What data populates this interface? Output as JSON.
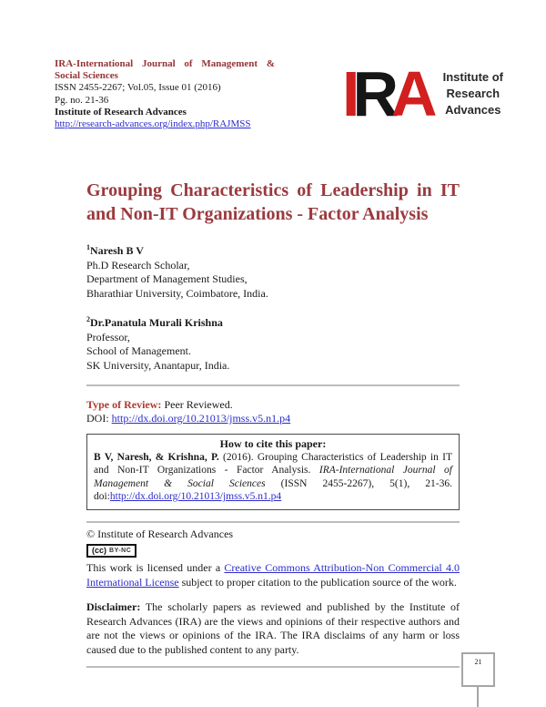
{
  "journal": {
    "title": "IRA-International Journal of Management & Social Sciences",
    "issn_line": "ISSN 2455-2267; Vol.05, Issue 01 (2016)",
    "pages_line": "Pg. no. 21-36",
    "publisher": "Institute of Research Advances",
    "url": "http://research-advances.org/index.php/RAJMSS"
  },
  "logo": {
    "letters": [
      "I",
      "R",
      "A"
    ],
    "caption_line_1": "Institute of",
    "caption_line_2": "Research",
    "caption_line_3": "Advances"
  },
  "article": {
    "title": "Grouping Characteristics of Leadership in IT and Non-IT Organizations - Factor Analysis",
    "authors": [
      {
        "superscript": "1",
        "name": "Naresh B V",
        "lines": [
          "Ph.D Research Scholar,",
          "Department of Management Studies,",
          "Bharathiar University, Coimbatore, India."
        ]
      },
      {
        "superscript": "2",
        "name": "Dr.Panatula Murali Krishna",
        "lines": [
          "Professor,",
          "School of Management.",
          "SK University, Anantapur, India."
        ]
      }
    ]
  },
  "review": {
    "label": "Type of Review:",
    "value": " Peer Reviewed.",
    "doi_label": "DOI: ",
    "doi_link": "http://dx.doi.org/10.21013/jmss.v5.n1.p4"
  },
  "citation": {
    "heading": "How to cite this paper:",
    "authors_bold": "B V, Naresh, & Krishna, P.",
    "text_before_journal": " (2016). Grouping Characteristics of Leadership in IT and Non-IT Organizations - Factor Analysis. ",
    "journal_italic": "IRA-International Journal of Management & Social Sciences",
    "text_after_journal": " (ISSN 2455-2267), 5(1), 21-36. doi:",
    "doi_link": "http://dx.doi.org/10.21013/jmss.v5.n1.p4"
  },
  "license": {
    "copyright": "© Institute of Research Advances",
    "cc_glyph": "(cc)",
    "cc_type": "BY-NC",
    "pre_link": "This work is licensed under a ",
    "link_text": "Creative Commons Attribution-Non Commercial 4.0 International License",
    "post_link": " subject to proper citation to the publication source of the work."
  },
  "disclaimer": {
    "label": "Disclaimer:",
    "text": " The scholarly papers as reviewed and published by the Institute of Research Advances (IRA) are the views and opinions of their respective authors and are not the views or opinions of the IRA. The IRA disclaims of any harm or loss caused due to the published content to any party."
  },
  "page_number": "21",
  "colors": {
    "title_maroon": "#9a3a3e",
    "header_maroon": "#943437",
    "review_red": "#b03a2e",
    "link_blue": "#2b2bcd",
    "logo_red": "#d21f1f",
    "logo_black": "#161616",
    "rule_gray": "#bdbdbd"
  }
}
